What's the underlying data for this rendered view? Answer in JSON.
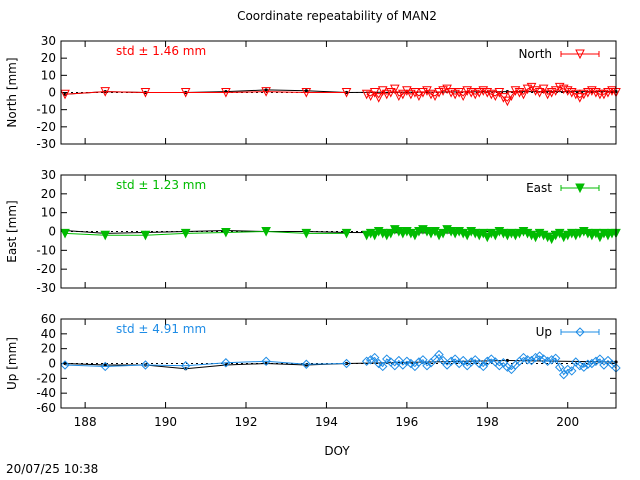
{
  "footer_timestamp": "20/07/25 10:38",
  "chart_data": {
    "type": "scatter",
    "title": "Coordinate repeatability of MAN2",
    "xlabel": "DOY",
    "xlim": [
      187.4,
      201.2
    ],
    "xticks": [
      188,
      190,
      192,
      194,
      196,
      198,
      200
    ],
    "panels": [
      {
        "id": "north",
        "ylabel": "North [mm]",
        "ylim": [
          -30,
          30
        ],
        "yticks": [
          -30,
          -20,
          -10,
          0,
          10,
          20,
          30
        ],
        "series_name": "North",
        "annotation": "std ± 1.46 mm",
        "color": "#ff0000",
        "marker": "triangle-down-open",
        "sparse": {
          "x": [
            187.5,
            188.5,
            189.5,
            190.5,
            191.5,
            192.5,
            193.5,
            194.5
          ],
          "y": [
            -1,
            0.5,
            0,
            0,
            0,
            0.5,
            0,
            0
          ]
        },
        "reference": {
          "x": [
            187.5,
            188.5,
            189.5,
            190.5,
            191.5,
            192.5,
            193.5,
            194.5,
            198.5,
            201.2
          ],
          "y": [
            -1,
            0.5,
            0,
            0,
            0.5,
            1.5,
            1,
            0,
            0.5,
            0.5
          ]
        },
        "dense": {
          "x": [
            195.0,
            195.1,
            195.2,
            195.3,
            195.4,
            195.5,
            195.6,
            195.7,
            195.8,
            195.9,
            196.0,
            196.1,
            196.2,
            196.3,
            196.4,
            196.5,
            196.6,
            196.7,
            196.8,
            196.9,
            197.0,
            197.1,
            197.2,
            197.3,
            197.4,
            197.5,
            197.6,
            197.7,
            197.8,
            197.9,
            198.0,
            198.1,
            198.2,
            198.3,
            198.4,
            198.5,
            198.6,
            198.7,
            198.8,
            198.9,
            199.0,
            199.1,
            199.2,
            199.3,
            199.4,
            199.5,
            199.6,
            199.7,
            199.8,
            199.9,
            200.0,
            200.1,
            200.2,
            200.3,
            200.4,
            200.5,
            200.6,
            200.7,
            200.8,
            200.9,
            201.0,
            201.1,
            201.2
          ],
          "y": [
            -1,
            -2,
            0,
            -3,
            1,
            -1,
            0,
            2,
            -2,
            -1,
            1,
            -1,
            0,
            -2,
            0,
            1,
            -1,
            -2,
            0,
            1,
            2,
            0,
            -1,
            0,
            -2,
            1,
            0,
            -1,
            0,
            1,
            0,
            -1,
            -2,
            0,
            -3,
            -5,
            -2,
            1,
            0,
            -1,
            2,
            3,
            1,
            0,
            2,
            -1,
            0,
            1,
            3,
            2,
            1,
            0,
            -1,
            -3,
            -1,
            0,
            1,
            0,
            -1,
            -1,
            0,
            1,
            0
          ]
        }
      },
      {
        "id": "east",
        "ylabel": "East [mm]",
        "ylim": [
          -30,
          30
        ],
        "yticks": [
          -30,
          -20,
          -10,
          0,
          10,
          20,
          30
        ],
        "series_name": "East",
        "annotation": "std ± 1.23 mm",
        "color": "#00bb00",
        "marker": "triangle-down-filled",
        "sparse": {
          "x": [
            187.5,
            188.5,
            189.5,
            190.5,
            191.5,
            192.5,
            193.5,
            194.5
          ],
          "y": [
            -1,
            -2,
            -2,
            -1,
            -0.5,
            0,
            -1,
            -1
          ]
        },
        "reference": {
          "x": [
            187.5,
            188.5,
            189.5,
            190.5,
            191.5,
            192.5,
            193.5,
            194.5,
            198.5,
            201.2
          ],
          "y": [
            0.5,
            -1,
            -0.5,
            0,
            0.5,
            0,
            0,
            -0.5,
            -1,
            -1
          ]
        },
        "dense": {
          "x": [
            195.0,
            195.1,
            195.2,
            195.3,
            195.4,
            195.5,
            195.6,
            195.7,
            195.8,
            195.9,
            196.0,
            196.1,
            196.2,
            196.3,
            196.4,
            196.5,
            196.6,
            196.7,
            196.8,
            196.9,
            197.0,
            197.1,
            197.2,
            197.3,
            197.4,
            197.5,
            197.6,
            197.7,
            197.8,
            197.9,
            198.0,
            198.1,
            198.2,
            198.3,
            198.4,
            198.5,
            198.6,
            198.7,
            198.8,
            198.9,
            199.0,
            199.1,
            199.2,
            199.3,
            199.4,
            199.5,
            199.6,
            199.7,
            199.8,
            199.9,
            200.0,
            200.1,
            200.2,
            200.3,
            200.4,
            200.5,
            200.6,
            200.7,
            200.8,
            200.9,
            201.0,
            201.1,
            201.2
          ],
          "y": [
            -2,
            -1,
            -2,
            0,
            -1,
            -2,
            -1,
            1,
            0,
            -1,
            0,
            -1,
            -2,
            0,
            1,
            0,
            -1,
            0,
            -2,
            -1,
            1,
            0,
            -1,
            0,
            -1,
            -2,
            0,
            -1,
            -2,
            -1,
            -3,
            -1,
            -2,
            0,
            -1,
            -2,
            -1,
            -2,
            -1,
            0,
            -1,
            -2,
            -3,
            -1,
            -2,
            -3,
            -4,
            -2,
            -1,
            -3,
            -2,
            -1,
            -2,
            -1,
            0,
            -1,
            -2,
            -1,
            -3,
            -1,
            -2,
            -1,
            -1
          ]
        }
      },
      {
        "id": "up",
        "ylabel": "Up [mm]",
        "ylim": [
          -60,
          60
        ],
        "yticks": [
          -60,
          -40,
          -20,
          0,
          20,
          40,
          60
        ],
        "series_name": "Up",
        "annotation": "std ± 4.91 mm",
        "color": "#1e8ce6",
        "marker": "diamond-open",
        "sparse": {
          "x": [
            187.5,
            188.5,
            189.5,
            190.5,
            191.5,
            192.5,
            193.5,
            194.5
          ],
          "y": [
            -2,
            -4,
            -2,
            -3,
            1,
            3,
            -1,
            0
          ]
        },
        "reference": {
          "x": [
            187.5,
            188.5,
            189.5,
            190.5,
            191.5,
            192.5,
            193.5,
            194.5,
            198.5,
            201.2
          ],
          "y": [
            0,
            -2,
            -2,
            -7,
            -2,
            0,
            -2,
            0,
            4,
            2
          ]
        },
        "dense": {
          "x": [
            195.0,
            195.1,
            195.2,
            195.3,
            195.4,
            195.5,
            195.6,
            195.7,
            195.8,
            195.9,
            196.0,
            196.1,
            196.2,
            196.3,
            196.4,
            196.5,
            196.6,
            196.7,
            196.8,
            196.9,
            197.0,
            197.1,
            197.2,
            197.3,
            197.4,
            197.5,
            197.6,
            197.7,
            197.8,
            197.9,
            198.0,
            198.1,
            198.2,
            198.3,
            198.4,
            198.5,
            198.6,
            198.7,
            198.8,
            198.9,
            199.0,
            199.1,
            199.2,
            199.3,
            199.4,
            199.5,
            199.6,
            199.7,
            199.8,
            199.9,
            200.0,
            200.1,
            200.2,
            200.3,
            200.4,
            200.5,
            200.6,
            200.7,
            200.8,
            200.9,
            201.0,
            201.1,
            201.2
          ],
          "y": [
            3,
            5,
            8,
            0,
            -4,
            6,
            2,
            -3,
            4,
            -2,
            3,
            0,
            -4,
            2,
            5,
            -3,
            1,
            6,
            12,
            4,
            -2,
            3,
            6,
            0,
            4,
            -3,
            2,
            5,
            0,
            -4,
            3,
            6,
            2,
            -3,
            1,
            -5,
            -8,
            -2,
            3,
            8,
            5,
            4,
            8,
            10,
            6,
            3,
            5,
            7,
            -5,
            -15,
            -8,
            -10,
            2,
            -3,
            -5,
            -1,
            0,
            3,
            6,
            -2,
            4,
            -1,
            -6
          ]
        }
      }
    ]
  }
}
